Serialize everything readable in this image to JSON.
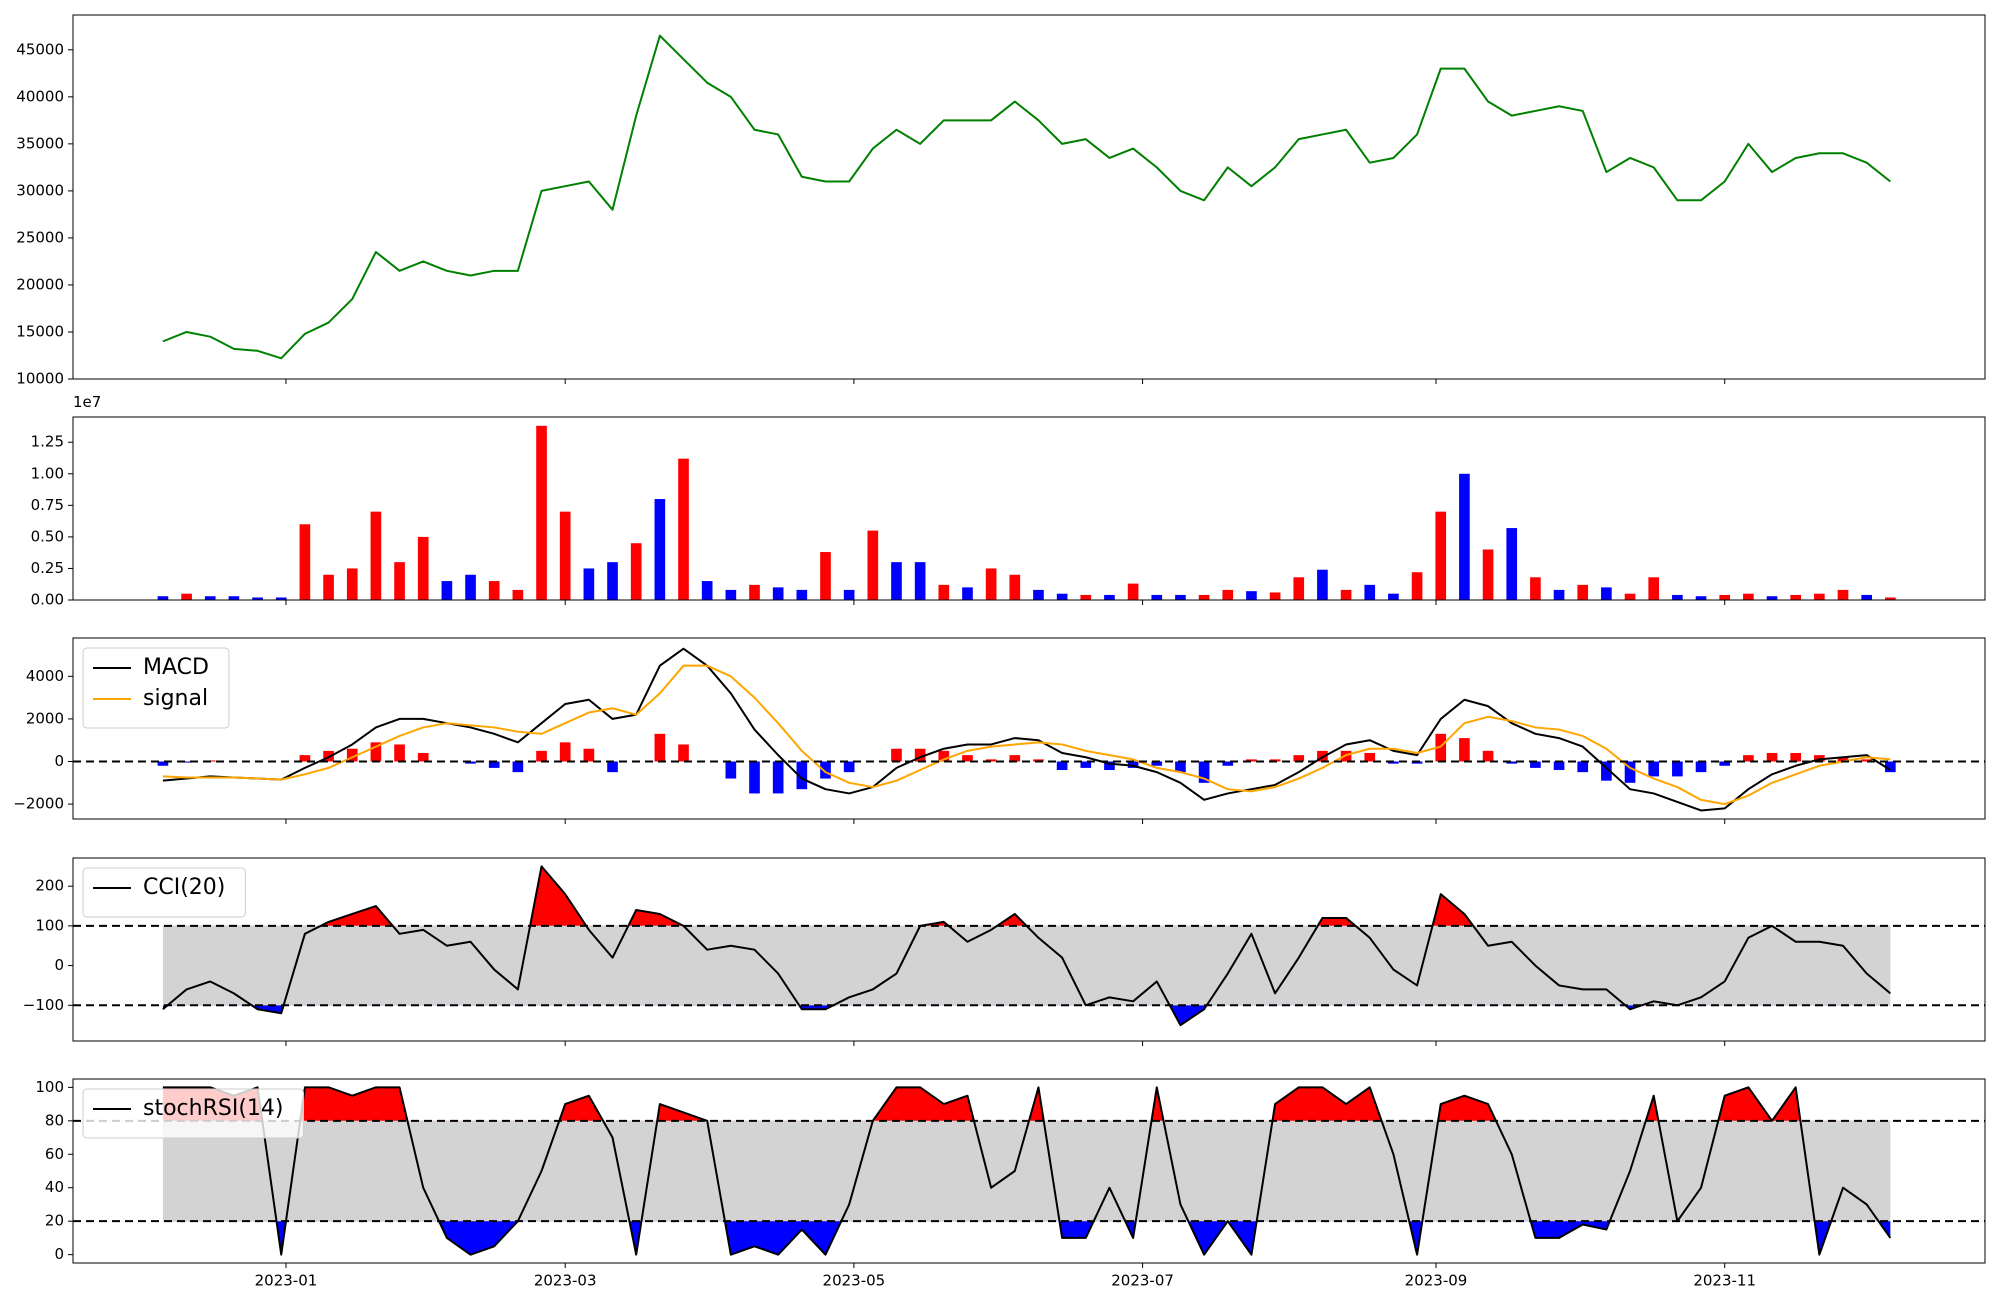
{
  "chart_data": [
    {
      "type": "line",
      "x": [
        "2022-12-06",
        "2022-12-11",
        "2022-12-16",
        "2022-12-21",
        "2022-12-26",
        "2022-12-31",
        "2023-01-05",
        "2023-01-10",
        "2023-01-15",
        "2023-01-20",
        "2023-01-25",
        "2023-01-30",
        "2023-02-04",
        "2023-02-09",
        "2023-02-14",
        "2023-02-19",
        "2023-02-24",
        "2023-03-01",
        "2023-03-06",
        "2023-03-11",
        "2023-03-16",
        "2023-03-21",
        "2023-03-26",
        "2023-03-31",
        "2023-04-05",
        "2023-04-10",
        "2023-04-15",
        "2023-04-20",
        "2023-04-25",
        "2023-04-30",
        "2023-05-05",
        "2023-05-10",
        "2023-05-15",
        "2023-05-20",
        "2023-05-25",
        "2023-05-30",
        "2023-06-04",
        "2023-06-09",
        "2023-06-14",
        "2023-06-19",
        "2023-06-24",
        "2023-06-29",
        "2023-07-04",
        "2023-07-09",
        "2023-07-14",
        "2023-07-19",
        "2023-07-24",
        "2023-07-29",
        "2023-08-03",
        "2023-08-08",
        "2023-08-13",
        "2023-08-18",
        "2023-08-23",
        "2023-08-28",
        "2023-09-02",
        "2023-09-07",
        "2023-09-12",
        "2023-09-17",
        "2023-09-22",
        "2023-09-27",
        "2023-10-02",
        "2023-10-07",
        "2023-10-12",
        "2023-10-17",
        "2023-10-22",
        "2023-10-27",
        "2023-11-01",
        "2023-11-06",
        "2023-11-11",
        "2023-11-16",
        "2023-11-21",
        "2023-11-26",
        "2023-12-01",
        "2023-12-06"
      ],
      "xlim": [
        "2022-11-17",
        "2023-12-26"
      ],
      "xticks": [
        "2023-01",
        "2023-03",
        "2023-05",
        "2023-07",
        "2023-09",
        "2023-11"
      ],
      "series": [
        {
          "color": "green",
          "values": [
            14000,
            15000,
            14500,
            13200,
            13000,
            12200,
            14800,
            16000,
            18500,
            23500,
            21500,
            22500,
            21500,
            21000,
            21500,
            21500,
            30000,
            30500,
            31000,
            28000,
            38000,
            46500,
            44000,
            41500,
            40000,
            36500,
            36000,
            31500,
            31000,
            31000,
            34500,
            36500,
            35000,
            37500,
            37500,
            37500,
            39500,
            37500,
            35000,
            35500,
            33500,
            34500,
            32500,
            30000,
            29000,
            32500,
            30500,
            32500,
            35500,
            36000,
            36500,
            33000,
            33500,
            36000,
            43000,
            43000,
            39500,
            38000,
            38500,
            39000,
            38500,
            32000,
            33500,
            32500,
            29000,
            29000,
            31000,
            35000,
            32000,
            33500,
            34000,
            34000,
            33000,
            31000
          ]
        }
      ],
      "ylim": [
        10000,
        48700
      ],
      "yticks": [
        10000,
        15000,
        20000,
        25000,
        30000,
        35000,
        40000,
        45000
      ]
    },
    {
      "type": "bar",
      "offset_label": "1e7",
      "series": [
        {
          "values": [
            0.03,
            0.05,
            0.03,
            0.03,
            0.02,
            0.02,
            0.6,
            0.2,
            0.25,
            0.7,
            0.3,
            0.5,
            0.15,
            0.2,
            0.15,
            0.08,
            1.38,
            0.7,
            0.25,
            0.3,
            0.45,
            0.8,
            1.12,
            0.15,
            0.08,
            0.12,
            0.1,
            0.08,
            0.38,
            0.08,
            0.55,
            0.3,
            0.3,
            0.12,
            0.1,
            0.25,
            0.2,
            0.08,
            0.05,
            0.04,
            0.04,
            0.13,
            0.04,
            0.04,
            0.04,
            0.08,
            0.07,
            0.06,
            0.18,
            0.24,
            0.08,
            0.12,
            0.05,
            0.22,
            0.7,
            1.0,
            0.4,
            0.57,
            0.18,
            0.08,
            0.12,
            0.1,
            0.05,
            0.18,
            0.04,
            0.03,
            0.04,
            0.05,
            0.03,
            0.04,
            0.05,
            0.08,
            0.04,
            0.02
          ],
          "colors": [
            "blue",
            "red",
            "blue",
            "blue",
            "blue",
            "blue",
            "red",
            "red",
            "red",
            "red",
            "red",
            "red",
            "blue",
            "blue",
            "red",
            "red",
            "red",
            "red",
            "blue",
            "blue",
            "red",
            "blue",
            "red",
            "blue",
            "blue",
            "red",
            "blue",
            "blue",
            "red",
            "blue",
            "red",
            "blue",
            "blue",
            "red",
            "blue",
            "red",
            "red",
            "blue",
            "blue",
            "red",
            "blue",
            "red",
            "blue",
            "blue",
            "red",
            "red",
            "blue",
            "red",
            "red",
            "blue",
            "red",
            "blue",
            "blue",
            "red",
            "red",
            "blue",
            "red",
            "blue",
            "red",
            "blue",
            "red",
            "blue",
            "red",
            "red",
            "blue",
            "blue",
            "red",
            "red",
            "blue",
            "red",
            "red",
            "red",
            "blue",
            "red"
          ]
        }
      ],
      "ylim": [
        0,
        1.45
      ],
      "yticks": [
        {
          "value": 0,
          "label": "0.00"
        },
        {
          "value": 0.25,
          "label": "0.25"
        },
        {
          "value": 0.5,
          "label": "0.50"
        },
        {
          "value": 0.75,
          "label": "0.75"
        },
        {
          "value": 1.0,
          "label": "1.00"
        },
        {
          "value": 1.25,
          "label": "1.25"
        }
      ]
    },
    {
      "type": "macd",
      "series": [
        {
          "name": "MACD",
          "color": "black",
          "values": [
            -900,
            -800,
            -700,
            -750,
            -800,
            -850,
            -300,
            200,
            800,
            1600,
            2000,
            2000,
            1800,
            1600,
            1300,
            900,
            1800,
            2700,
            2900,
            2000,
            2200,
            4500,
            5300,
            4500,
            3200,
            1500,
            300,
            -800,
            -1300,
            -1500,
            -1200,
            -300,
            200,
            600,
            800,
            800,
            1100,
            1000,
            400,
            200,
            -100,
            -200,
            -500,
            -1000,
            -1800,
            -1500,
            -1300,
            -1100,
            -500,
            200,
            800,
            1000,
            500,
            300,
            2000,
            2900,
            2600,
            1800,
            1300,
            1100,
            700,
            -300,
            -1300,
            -1500,
            -1900,
            -2300,
            -2200,
            -1300,
            -600,
            -200,
            100,
            200,
            300,
            -400
          ]
        },
        {
          "name": "signal",
          "color": "orange",
          "values": [
            -700,
            -750,
            -750,
            -750,
            -800,
            -850,
            -600,
            -300,
            200,
            700,
            1200,
            1600,
            1800,
            1700,
            1600,
            1400,
            1300,
            1800,
            2300,
            2500,
            2200,
            3200,
            4500,
            4500,
            4000,
            3000,
            1800,
            500,
            -500,
            -1000,
            -1200,
            -900,
            -400,
            100,
            500,
            700,
            800,
            900,
            800,
            500,
            300,
            100,
            -300,
            -500,
            -800,
            -1300,
            -1400,
            -1200,
            -800,
            -300,
            300,
            600,
            600,
            400,
            700,
            1800,
            2100,
            1900,
            1600,
            1500,
            1200,
            600,
            -300,
            -800,
            -1200,
            -1800,
            -2000,
            -1600,
            -1000,
            -600,
            -200,
            0,
            200,
            100
          ]
        }
      ],
      "histogram": {
        "pos_color": "red",
        "neg_color": "blue",
        "values": [
          -200,
          -50,
          50,
          0,
          0,
          0,
          300,
          500,
          600,
          900,
          800,
          400,
          0,
          -100,
          -300,
          -500,
          500,
          900,
          600,
          -500,
          0,
          1300,
          800,
          0,
          -800,
          -1500,
          -1500,
          -1300,
          -800,
          -500,
          0,
          600,
          600,
          500,
          300,
          100,
          300,
          100,
          -400,
          -300,
          -400,
          -300,
          -200,
          -500,
          -1000,
          -200,
          100,
          100,
          300,
          500,
          500,
          400,
          -100,
          -100,
          1300,
          1100,
          500,
          -100,
          -300,
          -400,
          -500,
          -900,
          -1000,
          -700,
          -700,
          -500,
          -200,
          300,
          400,
          400,
          300,
          200,
          100,
          -500
        ]
      },
      "hline": 0,
      "ylim": [
        -2700,
        5800
      ],
      "yticks": [
        {
          "value": -2000,
          "label": "−2000"
        },
        0,
        2000,
        4000
      ],
      "legend": "upper left"
    },
    {
      "type": "oscillator",
      "series": [
        {
          "name": "CCI(20)",
          "color": "black",
          "values": [
            -110,
            -60,
            -40,
            -70,
            -110,
            -120,
            80,
            110,
            130,
            150,
            80,
            90,
            50,
            60,
            -10,
            -60,
            250,
            180,
            90,
            20,
            140,
            130,
            100,
            40,
            50,
            40,
            -20,
            -110,
            -110,
            -80,
            -60,
            -20,
            100,
            110,
            60,
            90,
            130,
            70,
            20,
            -100,
            -80,
            -90,
            -40,
            -150,
            -110,
            -20,
            80,
            -70,
            20,
            120,
            120,
            70,
            -10,
            -50,
            180,
            130,
            50,
            60,
            0,
            -50,
            -60,
            -60,
            -110,
            -90,
            -100,
            -80,
            -40,
            70,
            100,
            60,
            60,
            50,
            -20,
            -70
          ]
        }
      ],
      "band": [
        -100,
        100
      ],
      "band_color": "lightgray",
      "above_color": "red",
      "below_color": "blue",
      "ylim": [
        -190,
        271
      ],
      "yticks": [
        {
          "value": -100,
          "label": "−100"
        },
        0,
        100,
        200
      ],
      "legend": "upper left"
    },
    {
      "type": "oscillator",
      "series": [
        {
          "name": "stochRSI(14)",
          "color": "black",
          "values": [
            100,
            100,
            100,
            95,
            100,
            0,
            100,
            100,
            95,
            100,
            100,
            40,
            10,
            0,
            5,
            20,
            50,
            90,
            95,
            70,
            0,
            90,
            85,
            80,
            0,
            5,
            0,
            15,
            0,
            30,
            80,
            100,
            100,
            90,
            95,
            40,
            50,
            100,
            10,
            10,
            40,
            10,
            100,
            30,
            0,
            20,
            0,
            90,
            100,
            100,
            90,
            100,
            60,
            0,
            90,
            95,
            90,
            60,
            10,
            10,
            18,
            15,
            50,
            95,
            20,
            40,
            95,
            100,
            80,
            100,
            0,
            40,
            30,
            10
          ]
        }
      ],
      "band": [
        20,
        80
      ],
      "band_color": "lightgray",
      "above_color": "red",
      "below_color": "blue",
      "ylim": [
        -5,
        105
      ],
      "yticks": [
        0,
        20,
        40,
        60,
        80,
        100
      ],
      "legend": "upper left"
    }
  ]
}
